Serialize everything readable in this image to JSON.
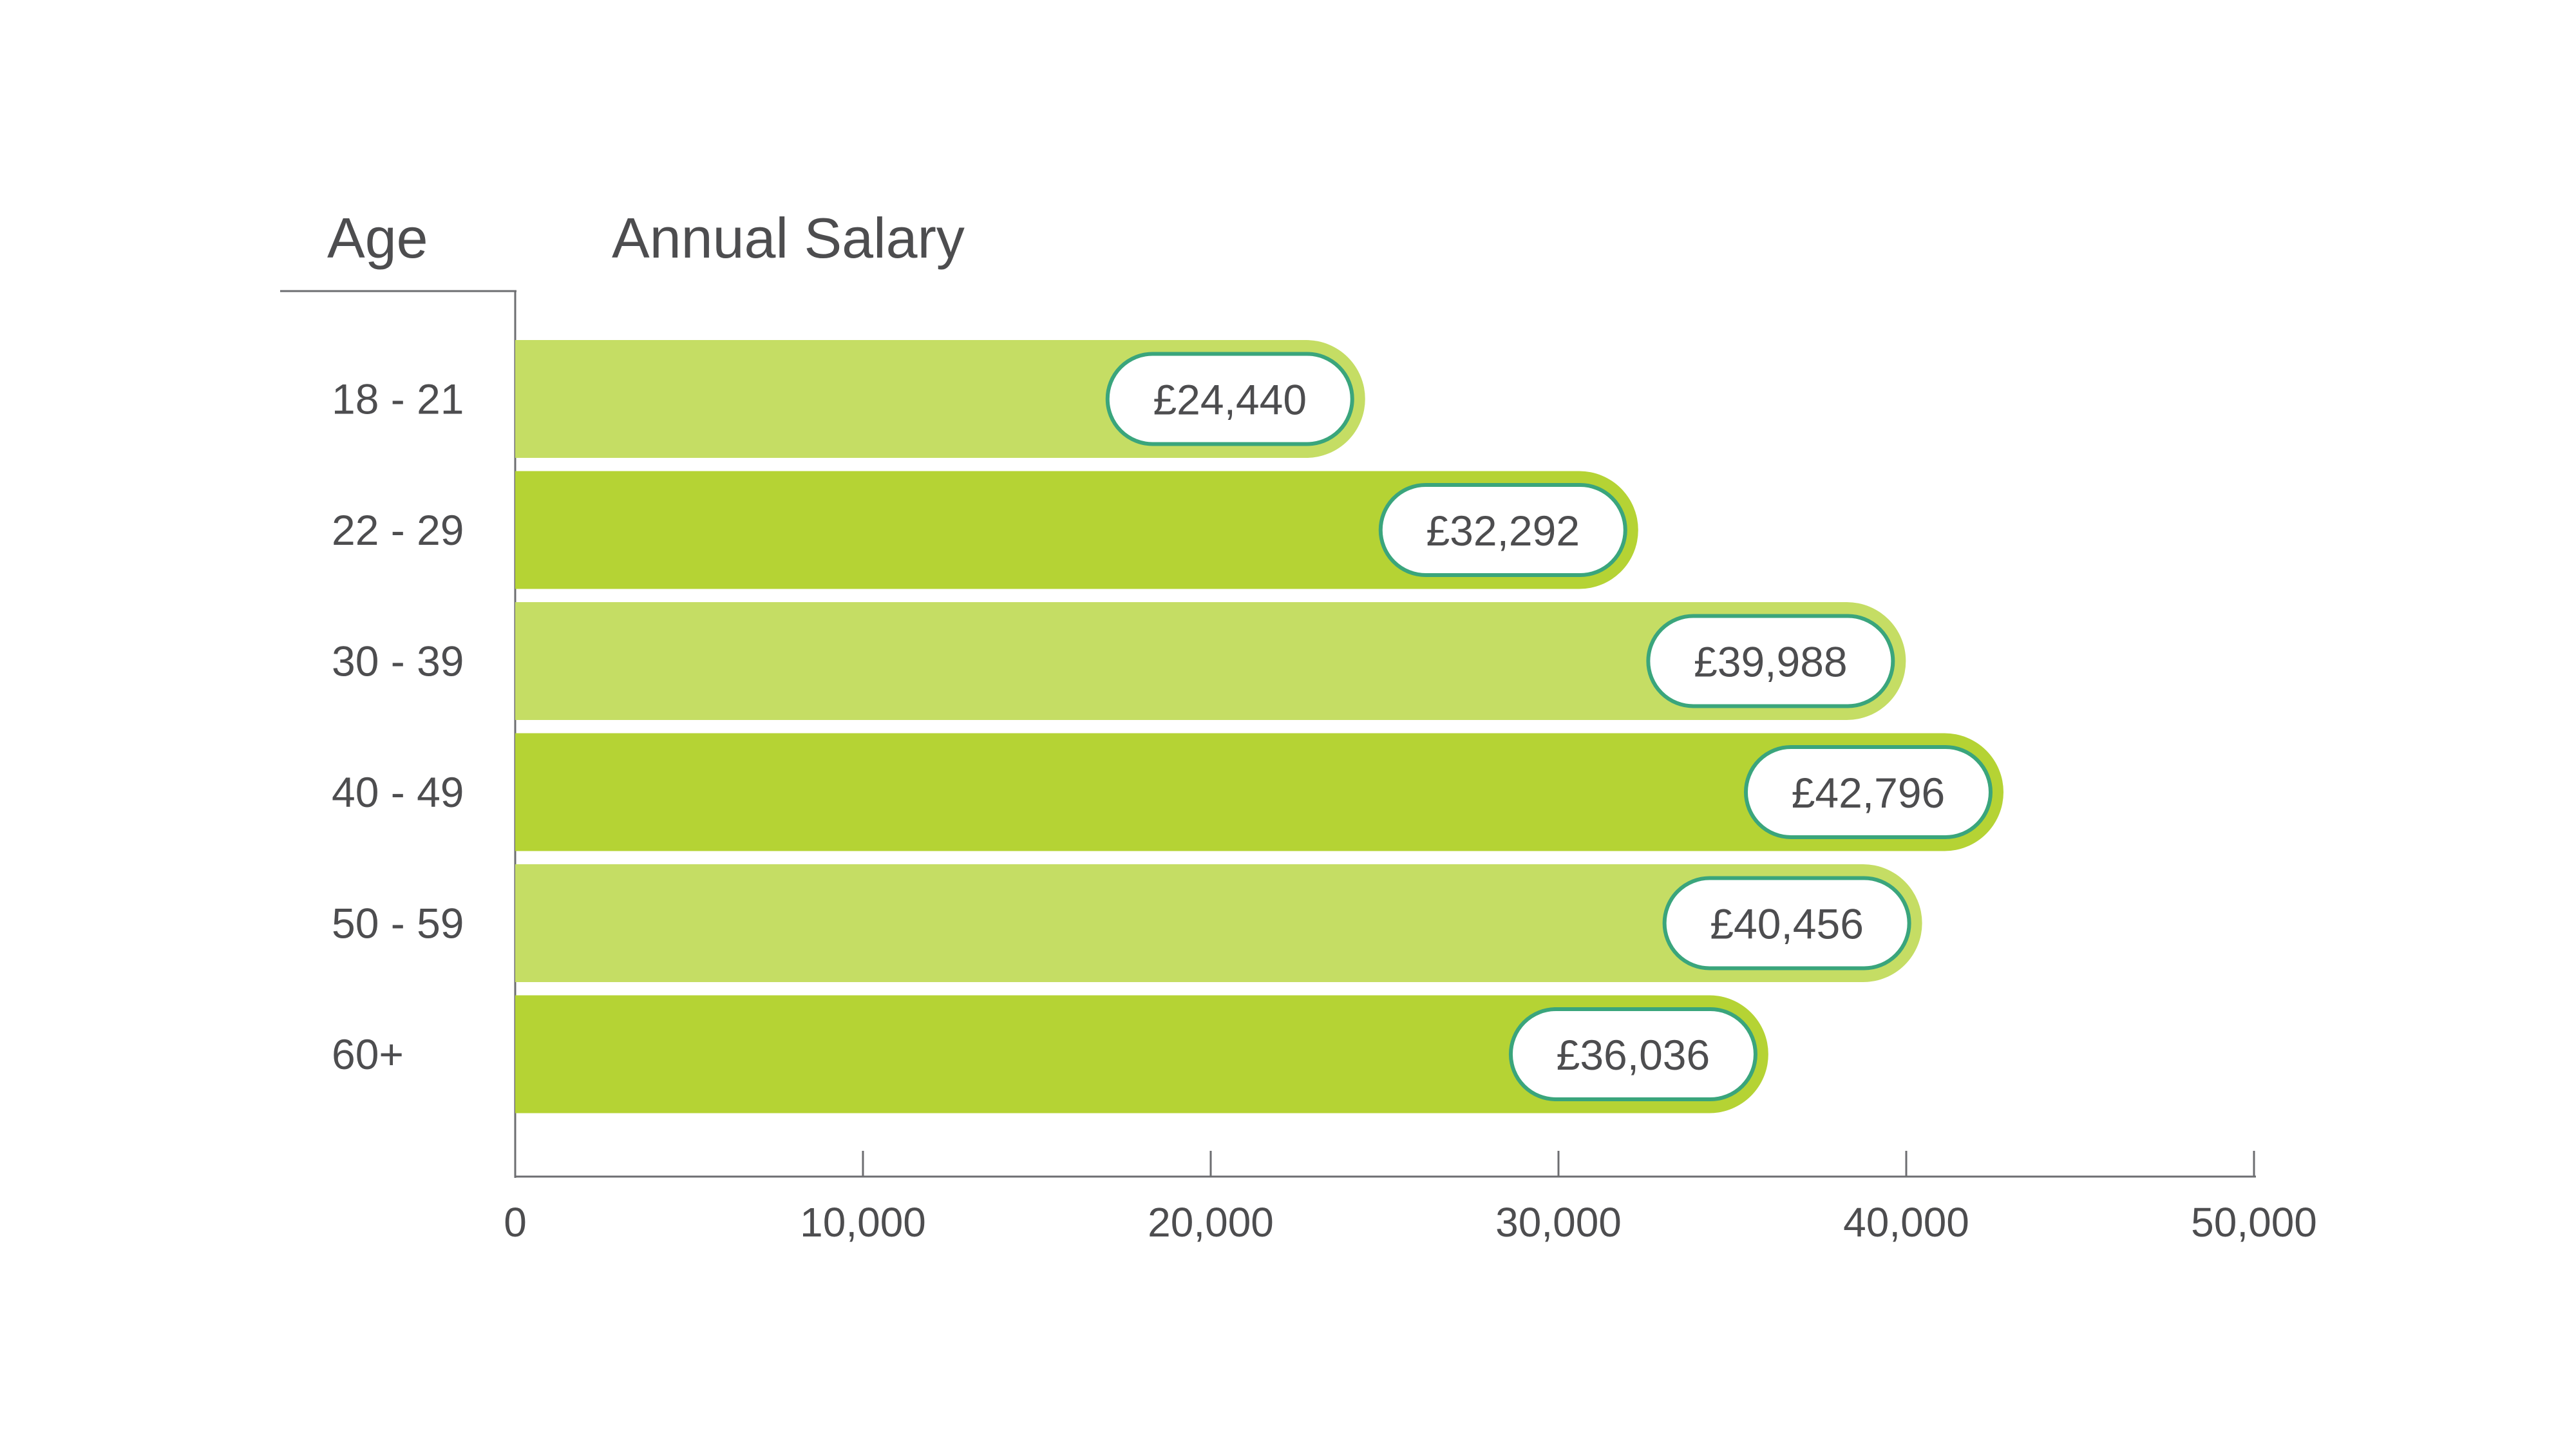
{
  "chart_data": {
    "type": "bar",
    "orientation": "horizontal",
    "headers": {
      "category": "Age",
      "value": "Annual Salary"
    },
    "categories": [
      "18 - 21",
      "22 - 29",
      "30 - 39",
      "40 - 49",
      "50 - 59",
      "60+"
    ],
    "values": [
      24440,
      32292,
      39988,
      42796,
      40456,
      36036
    ],
    "data_labels": [
      "£24,440",
      "£32,292",
      "£39,988",
      "£42,796",
      "£40,456",
      "£36,036"
    ],
    "xlim": [
      0,
      50000
    ],
    "xticks": [
      0,
      10000,
      20000,
      30000,
      40000,
      50000
    ],
    "xtick_labels": [
      "0",
      "10,000",
      "20,000",
      "30,000",
      "40,000",
      "50,000"
    ],
    "grid": false,
    "legend": "none",
    "colors": {
      "bar_light": "#c5dd64",
      "bar_dark": "#b5d334",
      "label_border": "#3aa57c",
      "label_fill": "#ffffff",
      "text": "#4d4d4f",
      "axis": "#6d6e71"
    }
  }
}
